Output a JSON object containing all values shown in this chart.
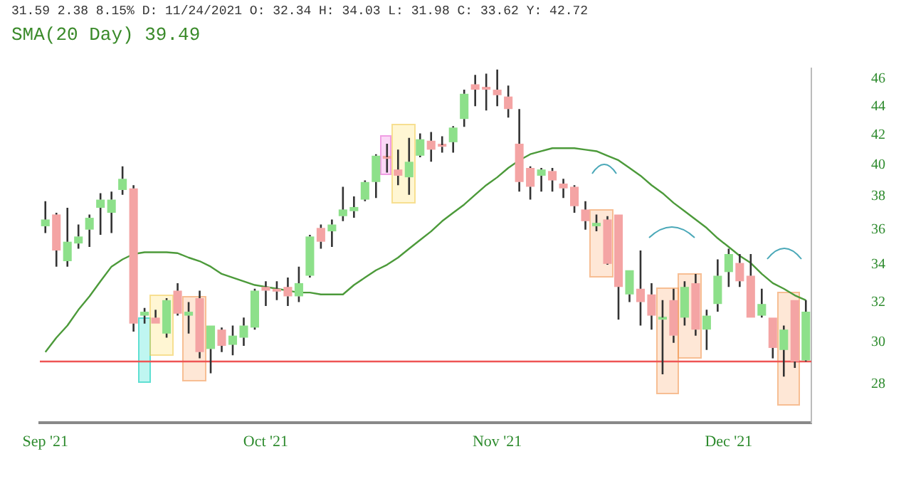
{
  "chart_data": {
    "type": "candlestick",
    "title": "31.59 2.38 8.15% D: 11/24/2021 O: 32.34 H: 34.03 L: 31.98 C: 33.62 Y: 42.72",
    "subtitle": "SMA(20 Day) 39.49",
    "categories": [
      "Sep '21",
      null,
      null,
      null,
      null,
      null,
      null,
      null,
      null,
      null,
      null,
      null,
      null,
      null,
      null,
      null,
      null,
      null,
      null,
      null,
      "Oct '21",
      null,
      null,
      null,
      null,
      null,
      null,
      null,
      null,
      null,
      null,
      null,
      null,
      null,
      null,
      null,
      null,
      null,
      null,
      null,
      null,
      "Nov '21",
      null,
      null,
      null,
      null,
      null,
      null,
      null,
      null,
      null,
      null,
      null,
      null,
      null,
      null,
      null,
      null,
      null,
      null,
      null,
      null,
      "Dec '21",
      null,
      null,
      null,
      null,
      null,
      null,
      null
    ],
    "ohlc": [
      [
        36.2,
        37.7,
        35.8,
        36.6
      ],
      [
        36.9,
        37.0,
        33.9,
        34.8
      ],
      [
        34.2,
        37.3,
        33.9,
        35.3
      ],
      [
        35.2,
        36.3,
        34.9,
        35.6
      ],
      [
        36.0,
        36.9,
        35.0,
        36.7
      ],
      [
        37.3,
        38.2,
        35.7,
        37.8
      ],
      [
        37.0,
        38.3,
        35.8,
        37.8
      ],
      [
        38.4,
        39.9,
        38.1,
        39.1
      ],
      [
        38.5,
        38.7,
        30.5,
        30.9
      ],
      [
        31.3,
        31.7,
        30.9,
        31.5
      ],
      [
        31.2,
        31.6,
        30.9,
        30.9
      ],
      [
        30.4,
        32.2,
        30.2,
        32.1
      ],
      [
        32.6,
        33.0,
        31.3,
        31.4
      ],
      [
        31.3,
        32.0,
        30.4,
        31.5
      ],
      [
        32.2,
        32.6,
        29.2,
        29.5
      ],
      [
        29.65,
        30.8,
        28.5,
        30.8
      ],
      [
        30.6,
        30.7,
        29.5,
        29.8
      ],
      [
        29.85,
        30.8,
        29.35,
        30.3
      ],
      [
        30.2,
        31.2,
        29.8,
        30.8
      ],
      [
        30.7,
        32.7,
        30.6,
        32.6
      ],
      [
        32.8,
        33.1,
        31.8,
        32.6
      ],
      [
        32.7,
        33.1,
        32.1,
        32.55
      ],
      [
        32.8,
        33.3,
        31.8,
        32.3
      ],
      [
        32.3,
        33.9,
        32.0,
        33.0
      ],
      [
        33.4,
        35.7,
        33.3,
        35.6
      ],
      [
        36.1,
        36.3,
        34.9,
        35.3
      ],
      [
        35.9,
        36.6,
        35.0,
        36.3
      ],
      [
        36.8,
        38.6,
        36.5,
        37.2
      ],
      [
        37.1,
        38.0,
        36.7,
        37.35
      ],
      [
        37.8,
        39.0,
        37.7,
        38.9
      ],
      [
        38.9,
        40.7,
        37.9,
        40.6
      ],
      [
        40.5,
        41.4,
        39.5,
        40.4
      ],
      [
        39.7,
        41.0,
        38.7,
        39.3
      ],
      [
        39.2,
        41.8,
        38.1,
        40.2
      ],
      [
        40.6,
        42.1,
        40.5,
        41.7
      ],
      [
        41.6,
        42.2,
        40.2,
        41.0
      ],
      [
        41.3,
        41.9,
        40.8,
        41.2
      ],
      [
        41.5,
        42.6,
        40.8,
        42.5
      ],
      [
        43.1,
        45.2,
        42.55,
        44.9
      ],
      [
        45.6,
        46.3,
        44.0,
        45.2
      ],
      [
        45.4,
        46.4,
        43.7,
        45.2
      ],
      [
        45.2,
        46.7,
        44.0,
        44.8
      ],
      [
        44.7,
        45.5,
        43.2,
        43.8
      ],
      [
        41.4,
        43.8,
        38.3,
        38.9
      ],
      [
        39.8,
        39.9,
        37.8,
        38.6
      ],
      [
        39.3,
        39.8,
        38.3,
        39.7
      ],
      [
        39.6,
        39.8,
        38.3,
        39.0
      ],
      [
        38.8,
        39.1,
        37.9,
        38.5
      ],
      [
        38.6,
        38.7,
        37.0,
        37.4
      ],
      [
        37.2,
        37.7,
        36.0,
        36.5
      ],
      [
        36.2,
        36.9,
        35.9,
        36.4
      ],
      [
        36.6,
        36.8,
        34.0,
        34.05
      ],
      [
        36.9,
        36.9,
        31.1,
        32.8
      ],
      [
        32.4,
        33.7,
        32.0,
        33.7
      ],
      [
        32.7,
        34.8,
        30.8,
        32.0
      ],
      [
        32.4,
        33.0,
        30.6,
        31.3
      ],
      [
        31.1,
        32.1,
        28.45,
        31.2
      ],
      [
        32.1,
        32.7,
        29.95,
        30.3
      ],
      [
        31.2,
        33.1,
        30.8,
        32.8
      ],
      [
        33.0,
        33.5,
        30.3,
        30.6
      ],
      [
        30.6,
        31.6,
        29.6,
        31.3
      ],
      [
        31.9,
        34.3,
        31.5,
        33.4
      ],
      [
        33.6,
        34.9,
        32.8,
        34.6
      ],
      [
        34.1,
        34.6,
        32.8,
        33.1
      ],
      [
        33.4,
        34.6,
        31.2,
        31.2
      ],
      [
        31.3,
        32.7,
        31.2,
        31.9
      ],
      [
        31.2,
        31.2,
        29.2,
        29.7
      ],
      [
        29.6,
        30.8,
        28.35,
        30.6
      ],
      [
        32.1,
        32.1,
        28.75,
        29.05
      ],
      [
        29.1,
        32.1,
        29.05,
        31.5
      ]
    ],
    "colors": [
      "#8de08a",
      "#f4a4a4",
      "#8de08a",
      "#8de08a",
      "#8de08a",
      "#8de08a",
      "#8de08a",
      "#8de08a",
      "#f4a4a4",
      "#8de08a",
      "#f4a4a4",
      "#8de08a",
      "#f4a4a4",
      "#8de08a",
      "#f4a4a4",
      "#8de08a",
      "#f4a4a4",
      "#8de08a",
      "#8de08a",
      "#8de08a",
      "#f4a4a4",
      "#f4a4a4",
      "#f4a4a4",
      "#8de08a",
      "#8de08a",
      "#f4a4a4",
      "#8de08a",
      "#8de08a",
      "#8de08a",
      "#8de08a",
      "#8de08a",
      "#f4a4a4",
      "#f4a4a4",
      "#8de08a",
      "#8de08a",
      "#f4a4a4",
      "#f4a4a4",
      "#8de08a",
      "#8de08a",
      "#f4a4a4",
      "#f4a4a4",
      "#f4a4a4",
      "#f4a4a4",
      "#f4a4a4",
      "#f4a4a4",
      "#8de08a",
      "#f4a4a4",
      "#f4a4a4",
      "#f4a4a4",
      "#f4a4a4",
      "#8de08a",
      "#f4a4a4",
      "#f4a4a4",
      "#8de08a",
      "#f4a4a4",
      "#f4a4a4",
      "#8de08a",
      "#f4a4a4",
      "#8de08a",
      "#f4a4a4",
      "#8de08a",
      "#8de08a",
      "#8de08a",
      "#f4a4a4",
      "#f4a4a4",
      "#8de08a",
      "#f4a4a4",
      "#8de08a",
      "#f4a4a4",
      "#8de08a"
    ],
    "series": [
      {
        "type": "line",
        "color": "#4c9a3a",
        "values": [
          29.5,
          30.2,
          30.8,
          31.6,
          32.3,
          33.1,
          33.9,
          34.3,
          34.6,
          34.7,
          34.7,
          34.7,
          34.65,
          34.4,
          34.2,
          33.9,
          33.5,
          33.3,
          33.1,
          32.9,
          32.8,
          32.7,
          32.6,
          32.5,
          32.5,
          32.4,
          32.4,
          32.4,
          32.9,
          33.3,
          33.7,
          34.0,
          34.4,
          34.9,
          35.4,
          35.9,
          36.5,
          37.0,
          37.5,
          38.1,
          38.7,
          39.2,
          39.8,
          40.3,
          40.7,
          40.9,
          41.1,
          41.1,
          41.1,
          41.0,
          40.9,
          40.6,
          40.3,
          39.8,
          39.3,
          38.7,
          38.2,
          37.6,
          37.1,
          36.6,
          36.1,
          35.5,
          35.0,
          34.5,
          34.1,
          33.5,
          33.0,
          32.7,
          32.35,
          32.1
        ]
      }
    ],
    "ref_lines": [
      {
        "axis": "y",
        "value": 29.05,
        "color": "#ee5555"
      }
    ],
    "log": "y",
    "ylim": [
      26.3,
      46.8
    ],
    "yticks": [
      28,
      30,
      32,
      34,
      36,
      38,
      40,
      42,
      44,
      46
    ],
    "grid": false,
    "legend": false
  }
}
